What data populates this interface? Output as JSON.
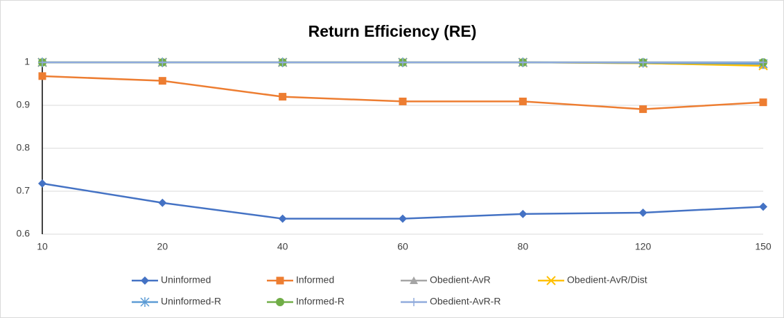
{
  "chart_data": {
    "type": "line",
    "title": "Return Efficiency (RE)",
    "categories": [
      "10",
      "20",
      "40",
      "60",
      "80",
      "120",
      "150"
    ],
    "ylim": [
      0.6,
      1
    ],
    "yticks": [
      0.6,
      0.7,
      0.8,
      0.9,
      1
    ],
    "grid": true,
    "legend": "bottom",
    "series": [
      {
        "name": "Uninformed",
        "color": "#4472c4",
        "marker": "diamond",
        "values": [
          0.718,
          0.673,
          0.636,
          0.636,
          0.647,
          0.65,
          0.664
        ]
      },
      {
        "name": "Informed",
        "color": "#ed7d31",
        "marker": "square",
        "values": [
          0.968,
          0.957,
          0.92,
          0.909,
          0.909,
          0.891,
          0.907
        ]
      },
      {
        "name": "Obedient-AvR",
        "color": "#a5a5a5",
        "marker": "triangle",
        "values": [
          1,
          1,
          1,
          1,
          1,
          0.998,
          0.993
        ]
      },
      {
        "name": "Obedient-AvR/Dist",
        "color": "#ffc000",
        "marker": "x",
        "values": [
          1,
          1,
          1,
          1,
          1,
          0.998,
          0.992
        ]
      },
      {
        "name": "Uninformed-R",
        "color": "#5b9bd5",
        "marker": "star",
        "values": [
          1,
          1,
          1,
          1,
          1,
          0.999,
          0.997
        ]
      },
      {
        "name": "Informed-R",
        "color": "#70ad47",
        "marker": "circle",
        "values": [
          1,
          1,
          1,
          1,
          1,
          1,
          1
        ]
      },
      {
        "name": "Obedient-AvR-R",
        "color": "#8faadc",
        "marker": "plus",
        "values": [
          1,
          1,
          1,
          1,
          1,
          1,
          1
        ]
      }
    ]
  }
}
